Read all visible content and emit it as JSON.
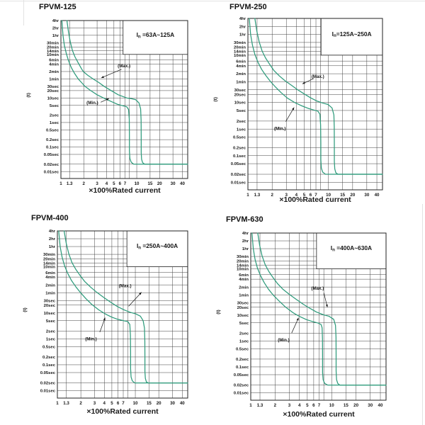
{
  "colors": {
    "curve": "#2f9b7c",
    "grid": "#404040",
    "border": "#222222",
    "text": "#151515",
    "box_fill": "#ffffff"
  },
  "axis": {
    "x_title": "×100%Rated current",
    "y_unit": "(t)",
    "x_max_edge": 47,
    "t_top": 14400,
    "t_bottom_edge": 0.0052,
    "box_bottom_t": 600,
    "x_ticks": [
      {
        "v": 1,
        "label": "1"
      },
      {
        "v": 1.3,
        "label": "1.3"
      },
      {
        "v": 2,
        "label": "2"
      },
      {
        "v": 3,
        "label": "3"
      },
      {
        "v": 4,
        "label": "4"
      },
      {
        "v": 5,
        "label": "5"
      },
      {
        "v": 6,
        "label": "6"
      },
      {
        "v": 7,
        "label": "7"
      },
      {
        "v": 10,
        "label": "10"
      },
      {
        "v": 15,
        "label": "15"
      },
      {
        "v": 20,
        "label": "20"
      },
      {
        "v": 30,
        "label": "30"
      },
      {
        "v": 40,
        "label": "40"
      }
    ],
    "x_grid_extra": [
      8
    ],
    "y_ticks": [
      {
        "t": 14400,
        "label": "4hr"
      },
      {
        "t": 7200,
        "label": "2hr"
      },
      {
        "t": 3600,
        "label": "1hr"
      },
      {
        "t": 1800,
        "label": "30min"
      },
      {
        "t": 1200,
        "label": "20min"
      },
      {
        "t": 840,
        "label": "14min"
      },
      {
        "t": 600,
        "label": "10min"
      },
      {
        "t": 360,
        "label": "6min"
      },
      {
        "t": 240,
        "label": "4min"
      },
      {
        "t": 120,
        "label": "2min"
      },
      {
        "t": 60,
        "label": "1min"
      },
      {
        "t": 30,
        "label": "30sec"
      },
      {
        "t": 20,
        "label": "20sec"
      },
      {
        "t": 10,
        "label": "10sec"
      },
      {
        "t": 5,
        "label": "5sec"
      },
      {
        "t": 2,
        "label": "2sec"
      },
      {
        "t": 1,
        "label": "1sec"
      },
      {
        "t": 0.5,
        "label": "0.5sec"
      },
      {
        "t": 0.2,
        "label": "0.2sec"
      },
      {
        "t": 0.1,
        "label": "0.1sec"
      },
      {
        "t": 0.05,
        "label": "0.05sec"
      },
      {
        "t": 0.02,
        "label": "0.02sec"
      },
      {
        "t": 0.01,
        "label": "0.01sec"
      }
    ]
  },
  "chart_data": [
    {
      "type": "line",
      "title": "FPVM-125",
      "in_label": "In =63A~125A",
      "box_left_x": 6.6,
      "xlabel": "×100%Rated current",
      "ylabel": "(t)",
      "x_range": [
        1,
        47
      ],
      "t_range": [
        0.0052,
        14400
      ],
      "annotations": {
        "max": {
          "label": "(Max.)",
          "x": 6.8,
          "t": 205,
          "leader": [
            [
              6.3,
              148
            ],
            [
              3.4,
              66
            ]
          ]
        },
        "min": {
          "label": "(Min.)",
          "x": 2.6,
          "t": 6.4,
          "leader": [
            [
              3.35,
              6.7
            ],
            [
              4.3,
              9.5
            ]
          ]
        }
      },
      "series": [
        {
          "name": "max",
          "points": [
            [
              1.2,
              14400
            ],
            [
              1.26,
              4800
            ],
            [
              1.33,
              1900
            ],
            [
              1.42,
              860
            ],
            [
              1.53,
              480
            ],
            [
              1.68,
              280
            ],
            [
              1.86,
              160
            ],
            [
              1.97,
              120
            ],
            [
              2.25,
              85
            ],
            [
              2.65,
              60
            ],
            [
              3.15,
              43
            ],
            [
              3.7,
              30
            ],
            [
              4.6,
              20
            ],
            [
              5.7,
              13.5
            ],
            [
              7.4,
              10
            ],
            [
              8.6,
              9.3
            ],
            [
              9.7,
              8.5
            ],
            [
              10.7,
              6.3
            ],
            [
              11.25,
              3.6
            ],
            [
              11.42,
              1.2
            ],
            [
              11.45,
              0.25
            ],
            [
              11.45,
              0.06
            ],
            [
              11.58,
              0.032
            ],
            [
              11.95,
              0.023
            ],
            [
              12.7,
              0.02
            ],
            [
              47,
              0.02
            ]
          ]
        },
        {
          "name": "min",
          "points": [
            [
              1.03,
              14400
            ],
            [
              1.065,
              3600
            ],
            [
              1.11,
              1400
            ],
            [
              1.18,
              640
            ],
            [
              1.26,
              330
            ],
            [
              1.37,
              175
            ],
            [
              1.5,
              105
            ],
            [
              1.69,
              60
            ],
            [
              1.88,
              42
            ],
            [
              2.07,
              30
            ],
            [
              2.47,
              20
            ],
            [
              3.0,
              13.5
            ],
            [
              3.65,
              10
            ],
            [
              4.5,
              7.4
            ],
            [
              5.6,
              5.5
            ],
            [
              6.6,
              4.8
            ],
            [
              7.35,
              4.4
            ],
            [
              7.8,
              3.4
            ],
            [
              7.97,
              1.4
            ],
            [
              8.0,
              0.3
            ],
            [
              8.0,
              0.07
            ],
            [
              8.12,
              0.034
            ],
            [
              8.45,
              0.024
            ],
            [
              9.1,
              0.02
            ],
            [
              47,
              0.02
            ]
          ]
        }
      ]
    },
    {
      "type": "line",
      "title": "FPVM-250",
      "in_label": "In=125A~250A",
      "box_left_x": 8.1,
      "xlabel": "×100%Rated current",
      "ylabel": "(t)",
      "x_range": [
        1,
        47
      ],
      "t_range": [
        0.0052,
        14400
      ],
      "annotations": {
        "max": {
          "label": "(Max.)",
          "x": 7.4,
          "t": 95,
          "leader": [
            [
              6.6,
              80
            ],
            [
              4.75,
              50
            ]
          ]
        },
        "min": {
          "label": "(Min.)",
          "x": 2.5,
          "t": 1.05,
          "leader": [
            [
              2.95,
              1.9
            ],
            [
              3.75,
              6.5
            ]
          ]
        }
      },
      "series": [
        {
          "name": "max",
          "points": [
            [
              1.22,
              14400
            ],
            [
              1.29,
              4800
            ],
            [
              1.38,
              1900
            ],
            [
              1.5,
              860
            ],
            [
              1.65,
              480
            ],
            [
              1.85,
              280
            ],
            [
              2.1,
              160
            ],
            [
              2.45,
              100
            ],
            [
              2.9,
              65
            ],
            [
              3.45,
              45
            ],
            [
              4.15,
              30
            ],
            [
              5.0,
              21
            ],
            [
              6.0,
              15
            ],
            [
              7.1,
              11.5
            ],
            [
              8.4,
              9.6
            ],
            [
              9.9,
              8.4
            ],
            [
              11.1,
              6.2
            ],
            [
              11.7,
              3.4
            ],
            [
              11.82,
              1.2
            ],
            [
              11.85,
              0.25
            ],
            [
              11.85,
              0.06
            ],
            [
              12.0,
              0.032
            ],
            [
              12.35,
              0.023
            ],
            [
              13.1,
              0.02
            ],
            [
              47,
              0.02
            ]
          ]
        },
        {
          "name": "min",
          "points": [
            [
              1.04,
              14400
            ],
            [
              1.08,
              3600
            ],
            [
              1.14,
              1400
            ],
            [
              1.22,
              640
            ],
            [
              1.33,
              330
            ],
            [
              1.48,
              175
            ],
            [
              1.66,
              105
            ],
            [
              1.9,
              62
            ],
            [
              2.2,
              38
            ],
            [
              2.6,
              23
            ],
            [
              3.1,
              14.5
            ],
            [
              3.8,
              10
            ],
            [
              4.6,
              7.6
            ],
            [
              5.6,
              6.0
            ],
            [
              6.6,
              5.2
            ],
            [
              7.4,
              4.7
            ],
            [
              7.85,
              3.6
            ],
            [
              8.0,
              1.4
            ],
            [
              8.05,
              0.3
            ],
            [
              8.05,
              0.07
            ],
            [
              8.17,
              0.034
            ],
            [
              8.5,
              0.024
            ],
            [
              9.2,
              0.02
            ],
            [
              47,
              0.02
            ]
          ]
        }
      ]
    },
    {
      "type": "line",
      "title": "FPVM-400",
      "in_label": "In =250A~400A",
      "box_left_x": 7.8,
      "xlabel": "×100%Rated current",
      "ylabel": "(t)",
      "x_range": [
        1,
        47
      ],
      "t_range": [
        0.0052,
        14400
      ],
      "annotations": {
        "max": {
          "label": "(Max.)",
          "x": 7.4,
          "t": 110,
          "leader": [
            [
              8.2,
              18
            ],
            [
              12.0,
              62
            ]
          ]
        },
        "min": {
          "label": "(Min.)",
          "x": 2.7,
          "t": 1.0,
          "leader": [
            [
              3.5,
              1.8
            ],
            [
              4.1,
              6.5
            ]
          ]
        }
      },
      "series": [
        {
          "name": "max",
          "points": [
            [
              1.22,
              14400
            ],
            [
              1.3,
              4800
            ],
            [
              1.4,
              1900
            ],
            [
              1.54,
              860
            ],
            [
              1.72,
              480
            ],
            [
              1.95,
              280
            ],
            [
              2.25,
              160
            ],
            [
              2.65,
              100
            ],
            [
              3.2,
              62
            ],
            [
              3.9,
              40
            ],
            [
              4.8,
              26
            ],
            [
              5.9,
              17.5
            ],
            [
              7.2,
              13
            ],
            [
              8.6,
              10.5
            ],
            [
              10.1,
              9.2
            ],
            [
              11.6,
              7.5
            ],
            [
              12.6,
              5
            ],
            [
              13.1,
              2.6
            ],
            [
              13.25,
              0.8
            ],
            [
              13.28,
              0.18
            ],
            [
              13.28,
              0.055
            ],
            [
              13.45,
              0.03
            ],
            [
              13.85,
              0.022
            ],
            [
              14.6,
              0.02
            ],
            [
              47,
              0.02
            ]
          ]
        },
        {
          "name": "min",
          "points": [
            [
              1.04,
              14400
            ],
            [
              1.085,
              3600
            ],
            [
              1.15,
              1400
            ],
            [
              1.24,
              640
            ],
            [
              1.36,
              330
            ],
            [
              1.52,
              175
            ],
            [
              1.73,
              100
            ],
            [
              2.0,
              58
            ],
            [
              2.35,
              34
            ],
            [
              2.8,
              20.5
            ],
            [
              3.4,
              13
            ],
            [
              4.15,
              9
            ],
            [
              5.0,
              6.8
            ],
            [
              6.0,
              5.6
            ],
            [
              7.1,
              5.0
            ],
            [
              8.0,
              4.6
            ],
            [
              8.5,
              3.6
            ],
            [
              8.65,
              1.4
            ],
            [
              8.7,
              0.3
            ],
            [
              8.7,
              0.07
            ],
            [
              8.82,
              0.034
            ],
            [
              9.15,
              0.024
            ],
            [
              9.8,
              0.02
            ],
            [
              47,
              0.02
            ]
          ]
        }
      ]
    },
    {
      "type": "line",
      "title": "FPVM-630",
      "in_label": "In =400A~630A",
      "box_left_x": 6.5,
      "xlabel": "×100%Rated current",
      "ylabel": "(t)",
      "x_range": [
        1,
        47
      ],
      "t_range": [
        0.0052,
        14400
      ],
      "annotations": {
        "max": {
          "label": "(Max.)",
          "x": 6.7,
          "t": 107,
          "leader": [
            [
              8.0,
              72
            ],
            [
              8.85,
              20
            ]
          ]
        },
        "min": {
          "label": "(Min.)",
          "x": 2.55,
          "t": 1.1,
          "leader": [
            [
              3.2,
              2.0
            ],
            [
              3.9,
              7.8
            ]
          ]
        }
      },
      "series": [
        {
          "name": "max",
          "points": [
            [
              1.22,
              14400
            ],
            [
              1.29,
              4800
            ],
            [
              1.38,
              1900
            ],
            [
              1.51,
              860
            ],
            [
              1.67,
              480
            ],
            [
              1.88,
              280
            ],
            [
              2.15,
              160
            ],
            [
              2.5,
              98
            ],
            [
              3.0,
              62
            ],
            [
              3.65,
              40
            ],
            [
              4.45,
              26
            ],
            [
              5.4,
              18
            ],
            [
              6.5,
              13
            ],
            [
              7.9,
              10.2
            ],
            [
              9.3,
              8.9
            ],
            [
              10.6,
              6.8
            ],
            [
              11.15,
              4
            ],
            [
              11.32,
              1.4
            ],
            [
              11.35,
              0.3
            ],
            [
              11.35,
              0.07
            ],
            [
              11.5,
              0.032
            ],
            [
              11.9,
              0.023
            ],
            [
              12.6,
              0.02
            ],
            [
              47,
              0.02
            ]
          ]
        },
        {
          "name": "min",
          "points": [
            [
              1.035,
              14400
            ],
            [
              1.075,
              3600
            ],
            [
              1.13,
              1400
            ],
            [
              1.21,
              640
            ],
            [
              1.32,
              330
            ],
            [
              1.47,
              175
            ],
            [
              1.65,
              100
            ],
            [
              1.9,
              58
            ],
            [
              2.25,
              34
            ],
            [
              2.7,
              20
            ],
            [
              3.3,
              12.5
            ],
            [
              4.0,
              8.8
            ],
            [
              4.9,
              6.6
            ],
            [
              5.9,
              5.5
            ],
            [
              6.8,
              4.9
            ],
            [
              7.4,
              4.3
            ],
            [
              7.62,
              3.2
            ],
            [
              7.7,
              1.2
            ],
            [
              7.72,
              0.25
            ],
            [
              7.72,
              0.06
            ],
            [
              7.85,
              0.032
            ],
            [
              8.2,
              0.023
            ],
            [
              8.9,
              0.02
            ],
            [
              47,
              0.02
            ]
          ]
        }
      ]
    }
  ]
}
